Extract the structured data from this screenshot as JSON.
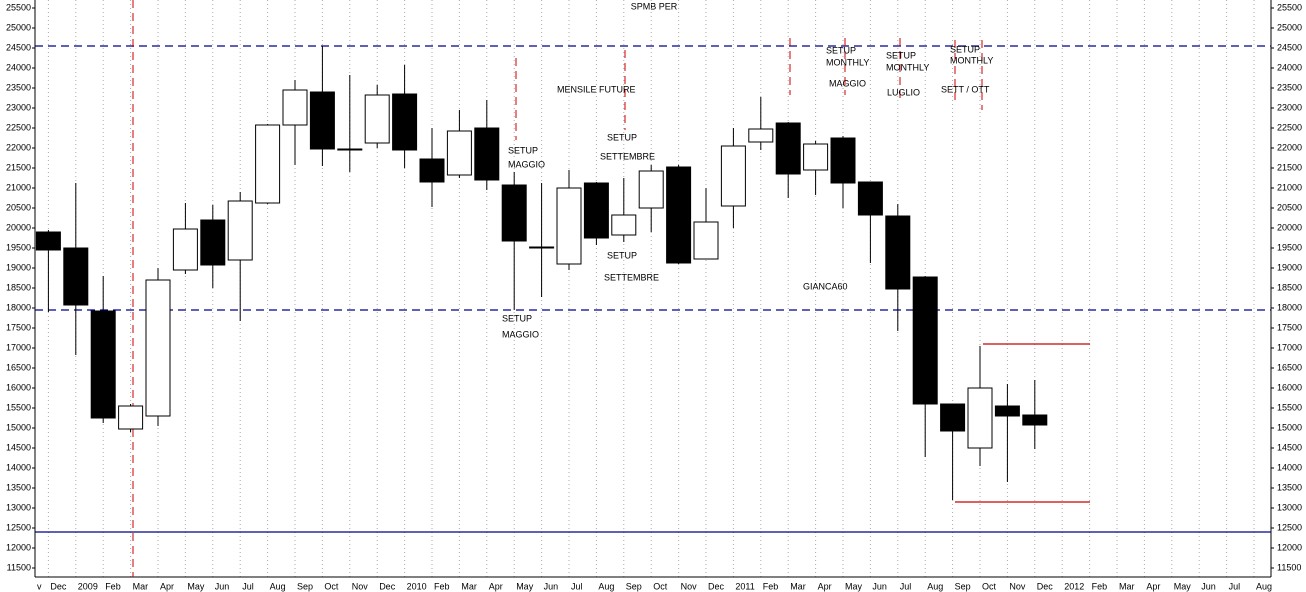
{
  "chart_data": {
    "type": "candlestick",
    "title": "SPMB PER",
    "categories": [
      "v",
      "Dec",
      "2009",
      "Feb",
      "Mar",
      "Apr",
      "May",
      "Jun",
      "Jul",
      "Aug",
      "Sep",
      "Oct",
      "Nov",
      "Dec",
      "2010",
      "Feb",
      "Mar",
      "Apr",
      "May",
      "Jun",
      "Jul",
      "Aug",
      "Sep",
      "Oct",
      "Nov",
      "Dec",
      "2011",
      "Feb",
      "Mar",
      "Apr",
      "May",
      "Jun",
      "Jul",
      "Aug",
      "Sep",
      "Oct",
      "Nov",
      "Dec",
      "2012",
      "Feb",
      "Mar",
      "Apr",
      "May",
      "Jun",
      "Jul",
      "Aug"
    ],
    "open": [
      null,
      19900,
      19500,
      17925,
      14975,
      15300,
      18950,
      20200,
      19200,
      20625,
      22575,
      23400,
      21975,
      22125,
      23350,
      21725,
      21325,
      22500,
      21075,
      19500,
      19100,
      21125,
      19825,
      20500,
      21525,
      19225,
      20550,
      22150,
      22625,
      21450,
      22250,
      21150,
      20300,
      18775,
      15600,
      14500,
      15550,
      15325,
      null,
      null,
      null,
      null,
      null,
      null,
      null,
      null
    ],
    "high": [
      null,
      19950,
      21125,
      18800,
      15600,
      19000,
      20625,
      20575,
      20900,
      22600,
      23700,
      24550,
      23825,
      23575,
      24075,
      22500,
      22950,
      23200,
      21400,
      21125,
      21450,
      21150,
      21250,
      21575,
      21575,
      21000,
      22500,
      23275,
      22650,
      22175,
      22300,
      21150,
      20600,
      18800,
      15600,
      17050,
      16100,
      16200,
      null,
      null,
      null,
      null,
      null,
      null,
      null,
      null
    ],
    "low": [
      null,
      17900,
      16825,
      15125,
      14900,
      15050,
      18850,
      18500,
      17675,
      20600,
      21575,
      21550,
      21400,
      22000,
      21500,
      20525,
      21250,
      20950,
      17950,
      18275,
      18950,
      19575,
      19650,
      19900,
      19100,
      19225,
      20000,
      21950,
      20750,
      20825,
      20500,
      19125,
      17425,
      14275,
      13200,
      14050,
      13650,
      14475,
      null,
      null,
      null,
      null,
      null,
      null,
      null,
      null
    ],
    "close": [
      null,
      19450,
      18075,
      15250,
      15550,
      18700,
      19975,
      19075,
      20675,
      22575,
      23450,
      21975,
      21950,
      23325,
      21950,
      21150,
      22425,
      21200,
      19675,
      19525,
      21000,
      19750,
      20325,
      21425,
      19125,
      20150,
      22050,
      22475,
      21350,
      22100,
      21125,
      20325,
      18475,
      15600,
      14925,
      16000,
      15300,
      15075,
      null,
      null,
      null,
      null,
      null,
      null,
      null,
      null
    ],
    "up_color": "#ffffff",
    "down_color": "#000000",
    "ylim": [
      11275,
      25700
    ],
    "yticks": [
      11500,
      12000,
      12500,
      13000,
      13500,
      14000,
      14500,
      15000,
      15500,
      16000,
      16500,
      17000,
      17500,
      18000,
      18500,
      19000,
      19500,
      20000,
      20500,
      21000,
      21500,
      22000,
      22500,
      23000,
      23500,
      24000,
      24500,
      25000,
      25500
    ],
    "grid": true,
    "hlines": [
      {
        "value": 24550,
        "color": "#00008b",
        "dash": true
      },
      {
        "value": 17950,
        "color": "#00008b",
        "dash": true
      },
      {
        "value": 12400,
        "color": "#00008b",
        "dash": false
      },
      {
        "value": 17100,
        "color": "#cc0000",
        "dash": false
      },
      {
        "value": 13150,
        "color": "#cc0000",
        "dash": false
      }
    ],
    "annotations": [
      "SETUP",
      "MAGGIO",
      "MENSILE FUTURE",
      "SETUP",
      "SETTEMBRE",
      "SETUP",
      "SETTEMBRE",
      "SETUP",
      "MAGGIO",
      "SETUP",
      "MONTHLY",
      "MAGGIO",
      "SETUP",
      "MONTHLY",
      "LUGLIO",
      "SETUP",
      "MONTHLY",
      "SETT  / OTT",
      "GIANCA60"
    ],
    "annotation_color": "#0000cc"
  }
}
